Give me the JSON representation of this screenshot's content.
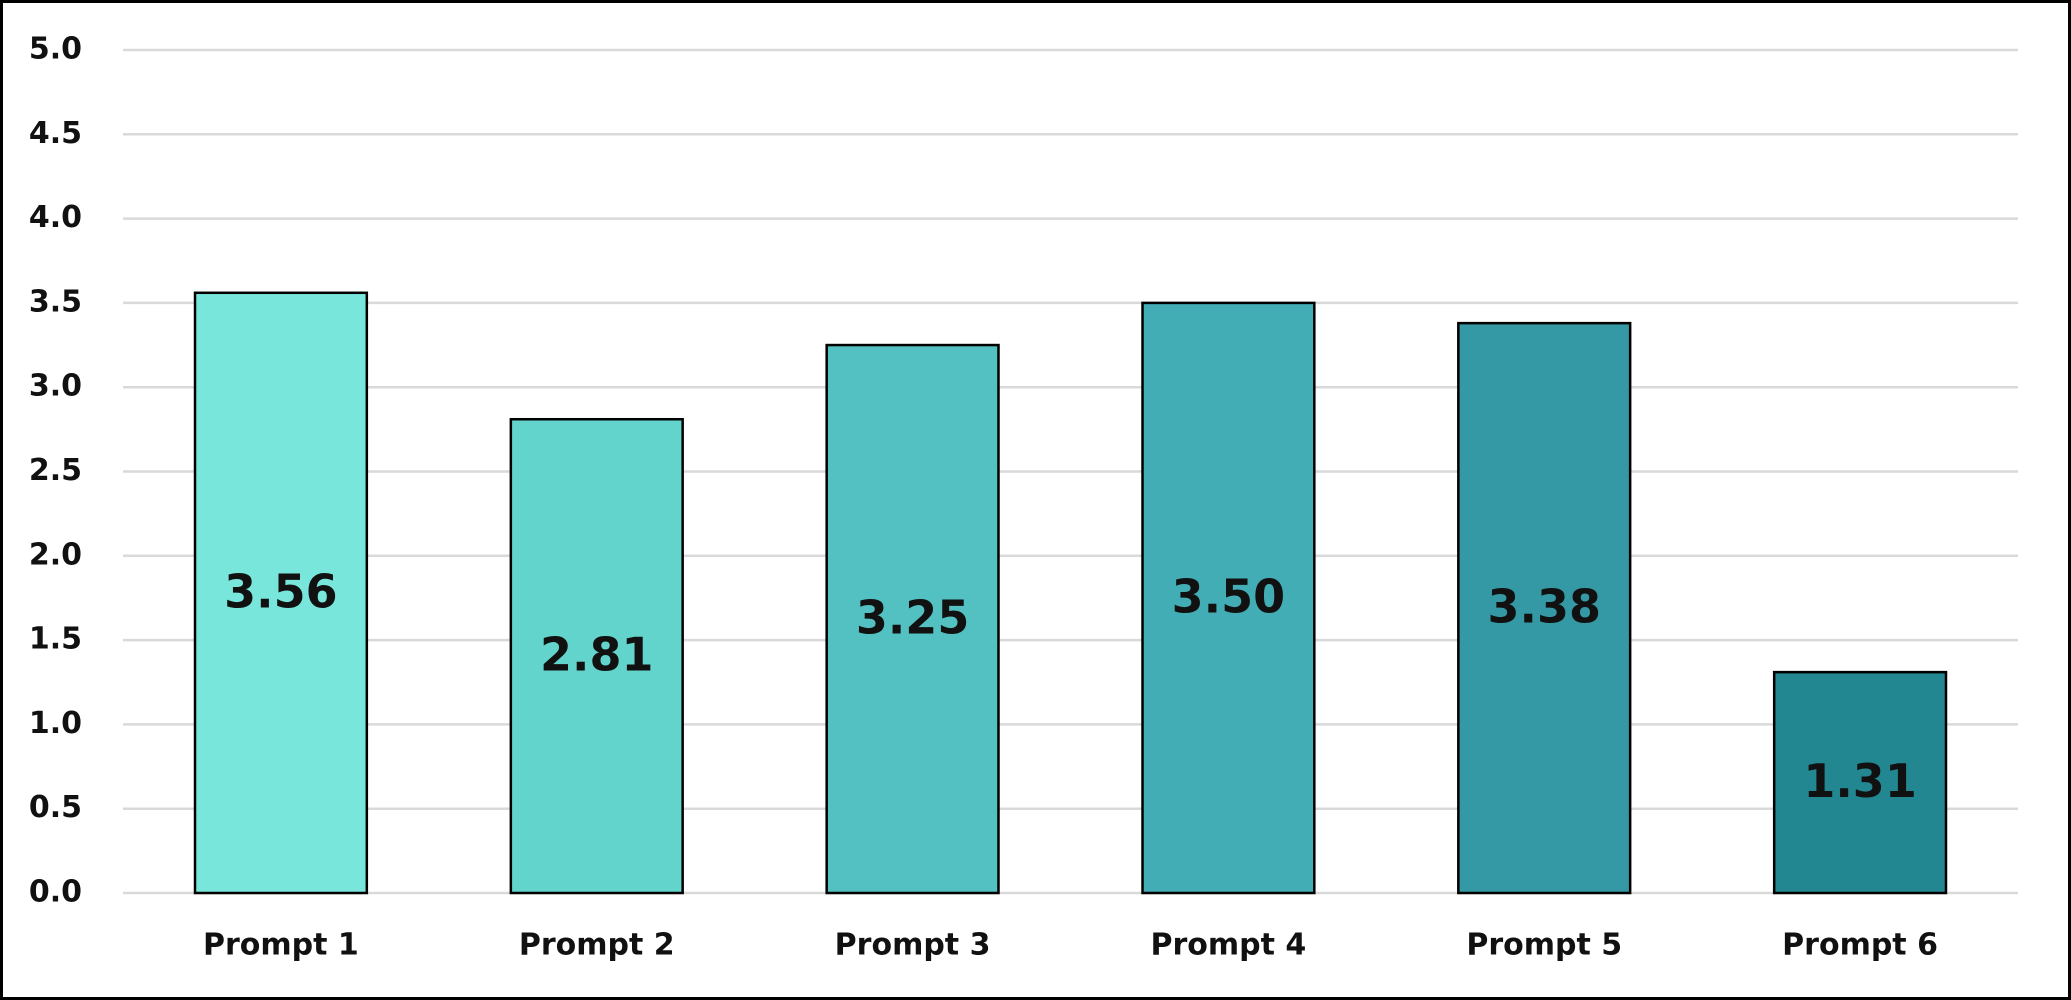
{
  "chart_data": {
    "type": "bar",
    "categories": [
      "Prompt 1",
      "Prompt 2",
      "Prompt 3",
      "Prompt 4",
      "Prompt 5",
      "Prompt 6"
    ],
    "values": [
      3.56,
      2.81,
      3.25,
      3.5,
      3.38,
      1.31
    ],
    "value_labels": [
      "3.56",
      "2.81",
      "3.25",
      "3.50",
      "3.38",
      "1.31"
    ],
    "colors": [
      "#79e6dc",
      "#63d4cb",
      "#53c0c1",
      "#43adb5",
      "#3499a4",
      "#238791"
    ],
    "ylim": [
      0,
      5
    ],
    "yticks": [
      {
        "value": 0,
        "label": "0.0"
      },
      {
        "value": 0.5,
        "label": "0.5"
      },
      {
        "value": 1,
        "label": "1.0"
      },
      {
        "value": 1.5,
        "label": "1.5"
      },
      {
        "value": 2,
        "label": "2.0"
      },
      {
        "value": 2.5,
        "label": "2.5"
      },
      {
        "value": 3,
        "label": "3.0"
      },
      {
        "value": 3.5,
        "label": "3.5"
      },
      {
        "value": 4,
        "label": "4.0"
      },
      {
        "value": 4.5,
        "label": "4.5"
      },
      {
        "value": 5,
        "label": "5.0"
      }
    ],
    "grid": true
  }
}
